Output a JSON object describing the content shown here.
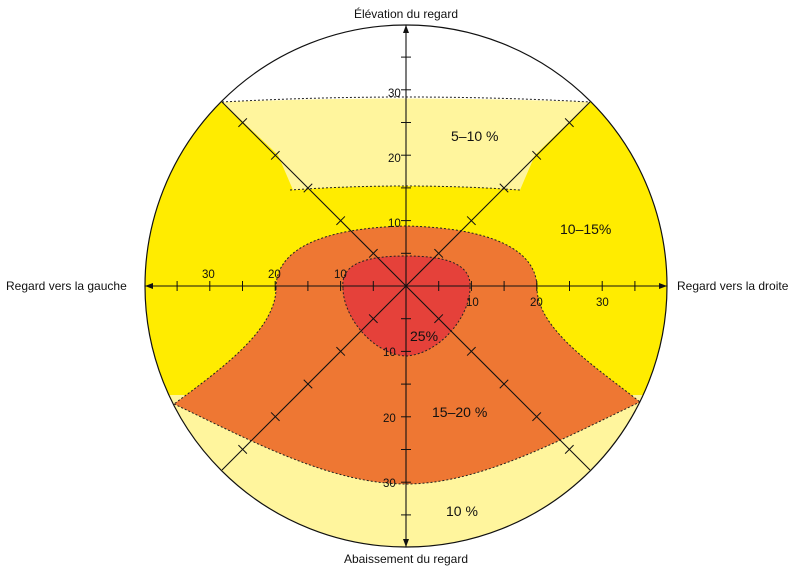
{
  "directions": {
    "top": "Élévation du regard",
    "bottom": "Abaissement du regard",
    "left": "Regard vers la gauche",
    "right": "Regard vers la droite"
  },
  "tick_labels": {
    "up": [
      "10",
      "20",
      "30"
    ],
    "down": [
      "10",
      "20",
      "30"
    ],
    "left": [
      "10",
      "20",
      "30"
    ],
    "right": [
      "10",
      "20",
      "30"
    ]
  },
  "zones": [
    {
      "label": "5–10 %",
      "color": "#fff59d"
    },
    {
      "label": "10–15%",
      "color": "#ffec00"
    },
    {
      "label": "15–20 %",
      "color": "#ee7733"
    },
    {
      "label": "25%",
      "color": "#e5413a"
    },
    {
      "label": "10 %",
      "color": "#fff59d"
    }
  ]
}
